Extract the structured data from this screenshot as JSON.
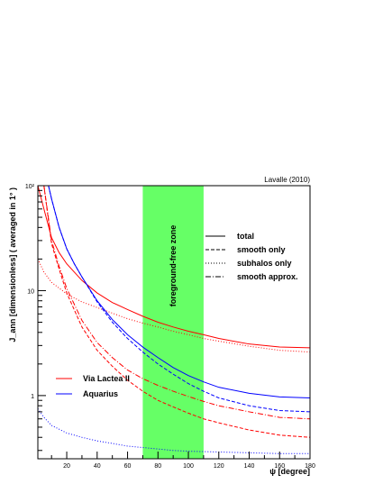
{
  "chart_data": {
    "type": "line",
    "annotation_corner": "Lavalle (2010)",
    "xlabel": "ψ [degree]",
    "ylabel": "J_ann [dimensionless] ( averaged in 1° )",
    "xlim": [
      1,
      180
    ],
    "ylim": [
      0.25,
      100
    ],
    "yscale": "log",
    "x_ticks": [
      20,
      40,
      60,
      80,
      100,
      120,
      140,
      160,
      180
    ],
    "y_ticks": [
      1,
      10,
      100
    ],
    "y_tick_labels": [
      "1",
      "10",
      "10²"
    ],
    "band": {
      "x0": 70,
      "x1": 110,
      "label": "foreground-free zone",
      "color": "#66ff66"
    },
    "legend_styles": [
      {
        "label": "total",
        "dash": "solid"
      },
      {
        "label": "smooth only",
        "dash": "dashed"
      },
      {
        "label": "subhalos only",
        "dash": "dotted"
      },
      {
        "label": "smooth approx.",
        "dash": "dashdot"
      }
    ],
    "legend_colors": [
      {
        "label": "Via Lactea II",
        "color": "#ff0000"
      },
      {
        "label": "Aquarius",
        "color": "#0000ff"
      }
    ],
    "series": [
      {
        "model": "Via Lactea II",
        "component": "total",
        "color": "#ff0000",
        "dash": "solid",
        "x": [
          1,
          5,
          10,
          15,
          20,
          30,
          40,
          50,
          60,
          70,
          80,
          90,
          100,
          110,
          120,
          140,
          160,
          180
        ],
        "y": [
          100,
          60,
          32,
          23,
          18,
          12.5,
          9.5,
          7.7,
          6.6,
          5.7,
          5.0,
          4.5,
          4.1,
          3.8,
          3.5,
          3.1,
          2.9,
          2.85
        ]
      },
      {
        "model": "Via Lactea II",
        "component": "smooth only",
        "color": "#ff0000",
        "dash": "dashed",
        "x": [
          5,
          10,
          15,
          20,
          30,
          40,
          50,
          60,
          70,
          80,
          90,
          100,
          110,
          120,
          140,
          160,
          180
        ],
        "y": [
          100,
          28,
          16,
          9.5,
          4.5,
          2.7,
          1.9,
          1.4,
          1.1,
          0.9,
          0.78,
          0.68,
          0.6,
          0.55,
          0.47,
          0.42,
          0.4
        ]
      },
      {
        "model": "Via Lactea II",
        "component": "subhalos only",
        "color": "#ff0000",
        "dash": "dotted",
        "x": [
          1,
          5,
          10,
          20,
          30,
          40,
          50,
          60,
          70,
          80,
          90,
          100,
          110,
          120,
          140,
          160,
          180
        ],
        "y": [
          20,
          15,
          12,
          9.3,
          7.8,
          6.9,
          6.1,
          5.4,
          4.9,
          4.5,
          4.1,
          3.8,
          3.5,
          3.3,
          2.95,
          2.7,
          2.6
        ]
      },
      {
        "model": "Via Lactea II",
        "component": "smooth approx.",
        "color": "#ff0000",
        "dash": "dashdot",
        "x": [
          5,
          10,
          15,
          20,
          30,
          40,
          50,
          60,
          70,
          80,
          90,
          100,
          110,
          120,
          140,
          160,
          180
        ],
        "y": [
          100,
          30,
          17,
          10.5,
          5.2,
          3.2,
          2.3,
          1.75,
          1.45,
          1.25,
          1.1,
          0.98,
          0.88,
          0.8,
          0.7,
          0.62,
          0.6
        ]
      },
      {
        "model": "Aquarius",
        "component": "total",
        "color": "#0000ff",
        "dash": "solid",
        "x": [
          8,
          10,
          15,
          20,
          25,
          30,
          40,
          50,
          60,
          70,
          80,
          90,
          100,
          110,
          120,
          140,
          160,
          180
        ],
        "y": [
          100,
          75,
          40,
          25,
          18,
          13.5,
          8,
          5.3,
          3.8,
          2.9,
          2.3,
          1.85,
          1.55,
          1.35,
          1.2,
          1.05,
          0.97,
          0.95
        ]
      },
      {
        "model": "Aquarius",
        "component": "smooth only",
        "color": "#0000ff",
        "dash": "dashed",
        "x": [
          8,
          10,
          15,
          20,
          25,
          30,
          40,
          50,
          60,
          70,
          80,
          90,
          100,
          110,
          120,
          140,
          160,
          180
        ],
        "y": [
          100,
          75,
          40,
          25,
          18,
          13.5,
          7.8,
          5.0,
          3.5,
          2.6,
          2.0,
          1.6,
          1.3,
          1.1,
          0.95,
          0.8,
          0.72,
          0.7
        ]
      },
      {
        "model": "Aquarius",
        "component": "subhalos only",
        "color": "#0000ff",
        "dash": "dotted",
        "x": [
          1,
          5,
          10,
          20,
          30,
          40,
          50,
          60,
          70,
          80,
          90,
          100,
          120,
          140,
          160,
          180
        ],
        "y": [
          0.75,
          0.62,
          0.52,
          0.44,
          0.4,
          0.37,
          0.35,
          0.33,
          0.32,
          0.31,
          0.3,
          0.295,
          0.29,
          0.285,
          0.28,
          0.28
        ]
      }
    ]
  }
}
